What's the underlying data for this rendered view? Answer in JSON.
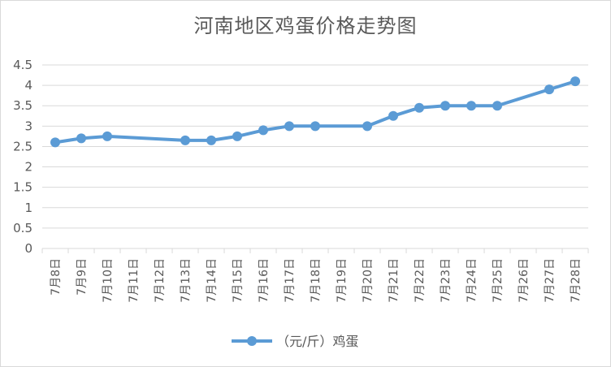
{
  "chart_data": {
    "type": "line",
    "title": "河南地区鸡蛋价格走势图",
    "categories": [
      "7月8日",
      "7月9日",
      "7月10日",
      "7月11日",
      "7月12日",
      "7月13日",
      "7月14日",
      "7月15日",
      "7月16日",
      "7月17日",
      "7月18日",
      "7月19日",
      "7月20日",
      "7月21日",
      "7月22日",
      "7月23日",
      "7月24日",
      "7月25日",
      "7月26日",
      "7月27日",
      "7月28日"
    ],
    "series": [
      {
        "name": "（元/斤）鸡蛋",
        "values": [
          2.6,
          2.7,
          2.75,
          null,
          null,
          2.65,
          2.65,
          2.75,
          2.9,
          3.0,
          3.0,
          null,
          3.0,
          3.25,
          3.45,
          3.5,
          3.5,
          3.5,
          null,
          3.9,
          4.1
        ]
      }
    ],
    "yticks": [
      "0",
      "0.5",
      "1",
      "1.5",
      "2",
      "2.5",
      "3",
      "3.5",
      "4",
      "4.5"
    ],
    "ylim": [
      0,
      4.5
    ],
    "grid": true,
    "legend_position": "bottom",
    "colors": {
      "series": "#5B9BD5",
      "grid": "#d9d9d9",
      "text": "#595959"
    }
  }
}
